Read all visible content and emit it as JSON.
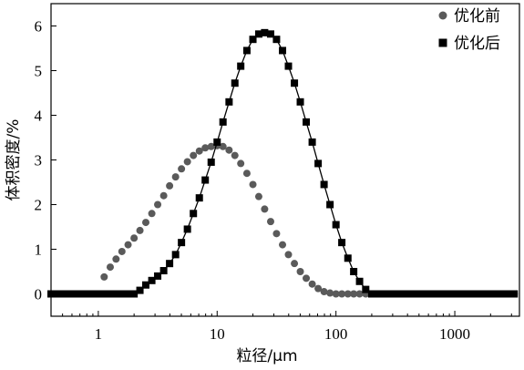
{
  "chart_data": {
    "type": "scatter",
    "title": "",
    "xlabel": "粒径/μm",
    "ylabel": "体积密度/%",
    "x_scale": "log",
    "xlim": [
      0.4,
      3500
    ],
    "ylim": [
      -0.5,
      6.5
    ],
    "x_ticks": [
      1,
      10,
      100,
      1000
    ],
    "x_tick_labels": [
      "1",
      "10",
      "100",
      "1000"
    ],
    "y_ticks": [
      0,
      1,
      2,
      3,
      4,
      5,
      6
    ],
    "y_tick_labels": [
      "0",
      "1",
      "2",
      "3",
      "4",
      "5",
      "6"
    ],
    "grid": false,
    "legend_position": "top-right",
    "series": [
      {
        "name": "优化前",
        "marker": "circle",
        "color": "#5a5a5a",
        "line": false,
        "x": [
          0.4,
          0.45,
          0.5,
          0.56,
          0.63,
          0.71,
          0.8,
          0.9,
          1.0,
          1.12,
          1.26,
          1.41,
          1.58,
          1.78,
          2.0,
          2.24,
          2.51,
          2.82,
          3.16,
          3.55,
          3.98,
          4.47,
          5.01,
          5.62,
          6.31,
          7.08,
          7.94,
          8.91,
          10.0,
          11.2,
          12.6,
          14.1,
          15.8,
          17.8,
          20.0,
          22.4,
          25.1,
          28.2,
          31.6,
          35.5,
          39.8,
          44.7,
          50.1,
          56.2,
          63.1,
          70.8,
          79.4,
          89.1,
          100,
          112,
          126,
          141,
          158,
          178,
          200,
          224,
          251,
          282,
          316,
          355,
          398,
          447,
          501,
          562,
          631,
          708,
          794,
          891,
          1000,
          1122,
          1259,
          1413,
          1585,
          1778,
          1995,
          2239,
          2512,
          2818,
          3162
        ],
        "y": [
          0,
          0,
          0,
          0,
          0,
          0,
          0,
          0,
          0,
          0.38,
          0.6,
          0.78,
          0.95,
          1.1,
          1.25,
          1.42,
          1.6,
          1.8,
          2.0,
          2.2,
          2.42,
          2.62,
          2.8,
          2.96,
          3.1,
          3.2,
          3.27,
          3.3,
          3.32,
          3.3,
          3.22,
          3.1,
          2.92,
          2.7,
          2.45,
          2.18,
          1.9,
          1.62,
          1.35,
          1.1,
          0.88,
          0.68,
          0.5,
          0.35,
          0.22,
          0.12,
          0.05,
          0.02,
          0,
          0,
          0,
          0,
          0,
          0,
          0,
          0,
          0,
          0,
          0,
          0,
          0,
          0,
          0,
          0,
          0,
          0,
          0,
          0,
          0,
          0,
          0,
          0,
          0,
          0,
          0,
          0,
          0,
          0,
          0
        ]
      },
      {
        "name": "优化后",
        "marker": "square",
        "color": "#000000",
        "line": true,
        "x": [
          0.4,
          0.45,
          0.5,
          0.56,
          0.63,
          0.71,
          0.8,
          0.9,
          1.0,
          1.12,
          1.26,
          1.41,
          1.58,
          1.78,
          2.0,
          2.24,
          2.51,
          2.82,
          3.16,
          3.55,
          3.98,
          4.47,
          5.01,
          5.62,
          6.31,
          7.08,
          7.94,
          8.91,
          10.0,
          11.2,
          12.6,
          14.1,
          15.8,
          17.8,
          20.0,
          22.4,
          25.1,
          28.2,
          31.6,
          35.5,
          39.8,
          44.7,
          50.1,
          56.2,
          63.1,
          70.8,
          79.4,
          89.1,
          100,
          112,
          126,
          141,
          158,
          178,
          200,
          224,
          251,
          282,
          316,
          355,
          398,
          447,
          501,
          562,
          631,
          708,
          794,
          891,
          1000,
          1122,
          1259,
          1413,
          1585,
          1778,
          1995,
          2239,
          2512,
          2818,
          3162
        ],
        "y": [
          0,
          0,
          0,
          0,
          0,
          0,
          0,
          0,
          0,
          0,
          0,
          0,
          0,
          0,
          0,
          0.08,
          0.2,
          0.3,
          0.4,
          0.52,
          0.68,
          0.88,
          1.15,
          1.45,
          1.8,
          2.15,
          2.55,
          2.95,
          3.4,
          3.85,
          4.3,
          4.72,
          5.1,
          5.45,
          5.7,
          5.82,
          5.85,
          5.82,
          5.7,
          5.45,
          5.1,
          4.72,
          4.3,
          3.85,
          3.4,
          2.92,
          2.45,
          2.0,
          1.55,
          1.15,
          0.8,
          0.5,
          0.28,
          0.1,
          0,
          0,
          0,
          0,
          0,
          0,
          0,
          0,
          0,
          0,
          0,
          0,
          0,
          0,
          0,
          0,
          0,
          0,
          0,
          0,
          0,
          0,
          0,
          0,
          0
        ]
      }
    ]
  }
}
